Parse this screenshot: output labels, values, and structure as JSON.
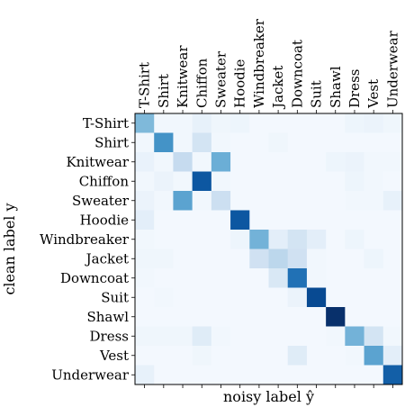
{
  "chart_data": {
    "type": "heatmap",
    "title": "",
    "xlabel": "noisy label ŷ",
    "ylabel": "clean label y",
    "categories": [
      "T-Shirt",
      "Shirt",
      "Knitwear",
      "Chiffon",
      "Sweater",
      "Hoodie",
      "Windbreaker",
      "Jacket",
      "Downcoat",
      "Suit",
      "Shawl",
      "Dress",
      "Vest",
      "Underwear"
    ],
    "colormap": "Blues",
    "value_range": [
      0,
      1
    ],
    "matrix": [
      [
        0.45,
        0.03,
        0.03,
        0.08,
        0.04,
        0.05,
        0.02,
        0.02,
        0.02,
        0.02,
        0.02,
        0.05,
        0.06,
        0.04
      ],
      [
        0.03,
        0.62,
        0.03,
        0.18,
        0.03,
        0.02,
        0.02,
        0.04,
        0.02,
        0.02,
        0.02,
        0.02,
        0.02,
        0.02
      ],
      [
        0.07,
        0.03,
        0.25,
        0.03,
        0.5,
        0.02,
        0.02,
        0.02,
        0.02,
        0.02,
        0.05,
        0.06,
        0.03,
        0.03
      ],
      [
        0.03,
        0.06,
        0.03,
        0.85,
        0.03,
        0.02,
        0.02,
        0.02,
        0.02,
        0.02,
        0.02,
        0.05,
        0.03,
        0.02
      ],
      [
        0.06,
        0.03,
        0.55,
        0.03,
        0.22,
        0.02,
        0.02,
        0.02,
        0.02,
        0.02,
        0.02,
        0.03,
        0.03,
        0.08
      ],
      [
        0.1,
        0.02,
        0.02,
        0.02,
        0.02,
        0.85,
        0.02,
        0.02,
        0.02,
        0.02,
        0.02,
        0.02,
        0.02,
        0.02
      ],
      [
        0.03,
        0.02,
        0.02,
        0.02,
        0.02,
        0.05,
        0.48,
        0.1,
        0.18,
        0.1,
        0.02,
        0.05,
        0.02,
        0.02
      ],
      [
        0.04,
        0.04,
        0.02,
        0.02,
        0.02,
        0.02,
        0.2,
        0.28,
        0.2,
        0.03,
        0.02,
        0.02,
        0.05,
        0.02
      ],
      [
        0.03,
        0.02,
        0.02,
        0.02,
        0.02,
        0.02,
        0.02,
        0.15,
        0.75,
        0.03,
        0.02,
        0.02,
        0.02,
        0.02
      ],
      [
        0.02,
        0.03,
        0.02,
        0.02,
        0.02,
        0.02,
        0.02,
        0.02,
        0.06,
        0.9,
        0.02,
        0.02,
        0.02,
        0.02
      ],
      [
        0.02,
        0.02,
        0.02,
        0.02,
        0.02,
        0.02,
        0.02,
        0.02,
        0.02,
        0.02,
        1.0,
        0.02,
        0.02,
        0.02
      ],
      [
        0.04,
        0.04,
        0.04,
        0.12,
        0.03,
        0.02,
        0.02,
        0.02,
        0.02,
        0.02,
        0.03,
        0.48,
        0.18,
        0.03
      ],
      [
        0.02,
        0.02,
        0.02,
        0.04,
        0.02,
        0.02,
        0.02,
        0.02,
        0.12,
        0.02,
        0.02,
        0.03,
        0.55,
        0.1
      ],
      [
        0.08,
        0.02,
        0.02,
        0.02,
        0.02,
        0.02,
        0.02,
        0.02,
        0.02,
        0.02,
        0.02,
        0.02,
        0.02,
        0.82
      ]
    ]
  }
}
